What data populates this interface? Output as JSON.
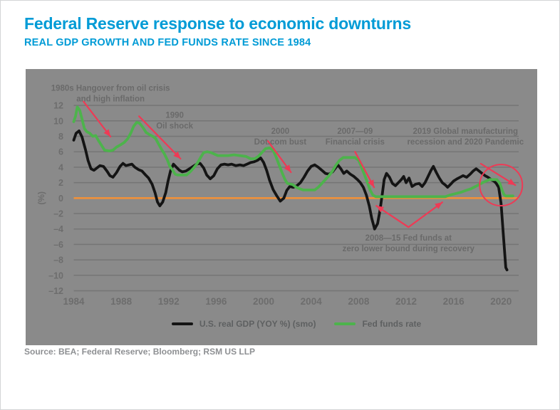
{
  "header": {
    "title": "Federal Reserve response to economic downturns",
    "subtitle": "REAL GDP GROWTH AND FED FUNDS RATE SINCE 1984"
  },
  "colors": {
    "accent_blue": "#009bd6",
    "panel_background": "#8a8a8a",
    "grid": "#757575",
    "zero_line_orange": "#f0913a",
    "gdp_black": "#141414",
    "fed_funds_green": "#4db34c",
    "annotation_red": "#ee3a55",
    "axis_text": "#6d6d6d",
    "annotation_text": "#6a6a6a"
  },
  "chart_data": {
    "type": "line",
    "title": "Federal Reserve response to economic downturns",
    "subtitle": "REAL GDP GROWTH AND FED FUNDS RATE SINCE 1984",
    "grid": true,
    "legend_position": "bottom",
    "x_axis": {
      "ticks": [
        1984,
        1988,
        1992,
        1996,
        2000,
        2004,
        2008,
        2012,
        2016,
        2020
      ],
      "tick_labels": [
        "1984",
        "1988",
        "1992",
        "1996",
        "2000",
        "2004",
        "2008",
        "2012",
        "2016",
        "2020"
      ],
      "range": [
        1984,
        2021.5
      ]
    },
    "y_axis": {
      "label": "(%)",
      "ticks": [
        12,
        10,
        8,
        6,
        4,
        2,
        0,
        -2,
        -4,
        -6,
        -8,
        -10,
        -12
      ],
      "tick_labels": [
        "12",
        "10",
        "8",
        "6",
        "4",
        "2",
        "0",
        "–2",
        "–4",
        "–6",
        "–8",
        "–10",
        "–12"
      ],
      "range": [
        -12,
        12
      ]
    },
    "zero_line_color": "#f0913a",
    "series": [
      {
        "id": "gdp",
        "name": "U.S. real GDP (YOY %) (smo)",
        "color": "#141414",
        "points": [
          [
            1984.0,
            7.5
          ],
          [
            1984.2,
            8.4
          ],
          [
            1984.45,
            8.7
          ],
          [
            1984.7,
            7.9
          ],
          [
            1985.0,
            6.2
          ],
          [
            1985.2,
            4.9
          ],
          [
            1985.45,
            3.8
          ],
          [
            1985.7,
            3.6
          ],
          [
            1985.95,
            3.9
          ],
          [
            1986.2,
            4.2
          ],
          [
            1986.5,
            4.1
          ],
          [
            1986.8,
            3.5
          ],
          [
            1987.05,
            2.9
          ],
          [
            1987.3,
            2.7
          ],
          [
            1987.6,
            3.3
          ],
          [
            1987.9,
            4.1
          ],
          [
            1988.15,
            4.5
          ],
          [
            1988.4,
            4.2
          ],
          [
            1988.65,
            4.3
          ],
          [
            1988.9,
            4.4
          ],
          [
            1989.15,
            4.0
          ],
          [
            1989.45,
            3.7
          ],
          [
            1989.75,
            3.5
          ],
          [
            1990.05,
            3.0
          ],
          [
            1990.3,
            2.6
          ],
          [
            1990.6,
            1.8
          ],
          [
            1990.85,
            0.7
          ],
          [
            1991.05,
            -0.5
          ],
          [
            1991.25,
            -1.0
          ],
          [
            1991.5,
            -0.5
          ],
          [
            1991.75,
            0.7
          ],
          [
            1991.95,
            2.2
          ],
          [
            1992.15,
            3.5
          ],
          [
            1992.4,
            4.4
          ],
          [
            1992.65,
            4.0
          ],
          [
            1992.9,
            3.6
          ],
          [
            1993.15,
            3.4
          ],
          [
            1993.45,
            3.5
          ],
          [
            1993.75,
            3.8
          ],
          [
            1994.05,
            4.1
          ],
          [
            1994.35,
            4.4
          ],
          [
            1994.65,
            4.5
          ],
          [
            1994.95,
            3.9
          ],
          [
            1995.2,
            3.0
          ],
          [
            1995.5,
            2.5
          ],
          [
            1995.8,
            2.9
          ],
          [
            1996.1,
            3.8
          ],
          [
            1996.4,
            4.3
          ],
          [
            1996.7,
            4.4
          ],
          [
            1997.0,
            4.3
          ],
          [
            1997.3,
            4.4
          ],
          [
            1997.65,
            4.2
          ],
          [
            1998.0,
            4.3
          ],
          [
            1998.3,
            4.2
          ],
          [
            1998.6,
            4.4
          ],
          [
            1998.9,
            4.6
          ],
          [
            1999.2,
            4.7
          ],
          [
            1999.5,
            4.9
          ],
          [
            1999.75,
            5.2
          ],
          [
            2000.0,
            4.6
          ],
          [
            2000.25,
            3.6
          ],
          [
            2000.5,
            2.3
          ],
          [
            2000.8,
            1.1
          ],
          [
            2001.1,
            0.3
          ],
          [
            2001.4,
            -0.4
          ],
          [
            2001.7,
            0.0
          ],
          [
            2001.95,
            1.0
          ],
          [
            2002.2,
            1.5
          ],
          [
            2002.5,
            1.4
          ],
          [
            2002.8,
            1.6
          ],
          [
            2003.1,
            2.0
          ],
          [
            2003.4,
            2.7
          ],
          [
            2003.7,
            3.5
          ],
          [
            2004.0,
            4.1
          ],
          [
            2004.3,
            4.3
          ],
          [
            2004.6,
            4.0
          ],
          [
            2004.9,
            3.6
          ],
          [
            2005.2,
            3.2
          ],
          [
            2005.5,
            3.1
          ],
          [
            2005.8,
            3.4
          ],
          [
            2006.05,
            3.9
          ],
          [
            2006.25,
            4.3
          ],
          [
            2006.5,
            3.8
          ],
          [
            2006.75,
            3.2
          ],
          [
            2007.0,
            3.5
          ],
          [
            2007.3,
            3.1
          ],
          [
            2007.6,
            2.8
          ],
          [
            2007.9,
            2.4
          ],
          [
            2008.15,
            2.0
          ],
          [
            2008.4,
            1.4
          ],
          [
            2008.65,
            0.4
          ],
          [
            2008.9,
            -1.0
          ],
          [
            2009.1,
            -2.6
          ],
          [
            2009.35,
            -4.0
          ],
          [
            2009.6,
            -3.3
          ],
          [
            2009.8,
            -1.6
          ],
          [
            2010.0,
            0.6
          ],
          [
            2010.15,
            2.4
          ],
          [
            2010.35,
            3.2
          ],
          [
            2010.6,
            2.7
          ],
          [
            2010.85,
            1.9
          ],
          [
            2011.1,
            1.6
          ],
          [
            2011.35,
            2.0
          ],
          [
            2011.6,
            2.4
          ],
          [
            2011.8,
            2.8
          ],
          [
            2012.0,
            2.0
          ],
          [
            2012.25,
            2.6
          ],
          [
            2012.5,
            1.5
          ],
          [
            2012.8,
            1.8
          ],
          [
            2013.1,
            1.9
          ],
          [
            2013.35,
            1.5
          ],
          [
            2013.6,
            2.0
          ],
          [
            2013.85,
            2.8
          ],
          [
            2014.1,
            3.6
          ],
          [
            2014.3,
            4.1
          ],
          [
            2014.55,
            3.3
          ],
          [
            2014.8,
            2.6
          ],
          [
            2015.05,
            2.0
          ],
          [
            2015.3,
            1.7
          ],
          [
            2015.5,
            1.4
          ],
          [
            2015.75,
            1.8
          ],
          [
            2016.0,
            2.2
          ],
          [
            2016.3,
            2.5
          ],
          [
            2016.55,
            2.7
          ],
          [
            2016.8,
            2.9
          ],
          [
            2017.1,
            2.7
          ],
          [
            2017.4,
            3.1
          ],
          [
            2017.65,
            3.5
          ],
          [
            2017.9,
            3.8
          ],
          [
            2018.15,
            3.5
          ],
          [
            2018.4,
            3.2
          ],
          [
            2018.65,
            2.9
          ],
          [
            2018.9,
            2.7
          ],
          [
            2019.15,
            2.4
          ],
          [
            2019.4,
            2.2
          ],
          [
            2019.6,
            1.9
          ],
          [
            2019.8,
            1.4
          ],
          [
            2020.0,
            -0.7
          ],
          [
            2020.2,
            -4.9
          ],
          [
            2020.4,
            -9.0
          ],
          [
            2020.5,
            -9.3
          ]
        ]
      },
      {
        "id": "fedfunds",
        "name": "Fed funds rate",
        "color": "#4db34c",
        "points": [
          [
            1984.0,
            9.9
          ],
          [
            1984.15,
            10.6
          ],
          [
            1984.3,
            11.8
          ],
          [
            1984.5,
            11.4
          ],
          [
            1984.7,
            10.2
          ],
          [
            1984.9,
            9.0
          ],
          [
            1985.1,
            8.6
          ],
          [
            1985.35,
            8.4
          ],
          [
            1985.6,
            8.0
          ],
          [
            1985.85,
            8.1
          ],
          [
            1986.1,
            7.4
          ],
          [
            1986.35,
            6.8
          ],
          [
            1986.6,
            6.2
          ],
          [
            1987.0,
            6.1
          ],
          [
            1987.3,
            6.2
          ],
          [
            1987.6,
            6.6
          ],
          [
            1987.95,
            6.9
          ],
          [
            1988.25,
            7.2
          ],
          [
            1988.55,
            7.7
          ],
          [
            1988.8,
            8.4
          ],
          [
            1989.05,
            9.3
          ],
          [
            1989.3,
            9.8
          ],
          [
            1989.55,
            9.7
          ],
          [
            1989.85,
            9.1
          ],
          [
            1990.1,
            8.5
          ],
          [
            1990.4,
            8.2
          ],
          [
            1990.65,
            8.0
          ],
          [
            1990.9,
            7.7
          ],
          [
            1991.15,
            7.0
          ],
          [
            1991.4,
            6.3
          ],
          [
            1991.65,
            5.7
          ],
          [
            1991.9,
            4.9
          ],
          [
            1992.1,
            4.1
          ],
          [
            1992.3,
            3.7
          ],
          [
            1992.55,
            3.1
          ],
          [
            1992.75,
            3.0
          ],
          [
            1993.5,
            3.0
          ],
          [
            1993.8,
            3.4
          ],
          [
            1994.1,
            3.9
          ],
          [
            1994.4,
            4.5
          ],
          [
            1994.7,
            5.3
          ],
          [
            1994.95,
            5.9
          ],
          [
            1995.25,
            6.0
          ],
          [
            1995.55,
            5.9
          ],
          [
            1995.85,
            5.7
          ],
          [
            1996.15,
            5.5
          ],
          [
            1997.0,
            5.5
          ],
          [
            1997.5,
            5.6
          ],
          [
            1998.0,
            5.5
          ],
          [
            1998.5,
            5.4
          ],
          [
            1998.9,
            5.1
          ],
          [
            1999.25,
            5.1
          ],
          [
            1999.55,
            5.4
          ],
          [
            1999.85,
            5.9
          ],
          [
            2000.15,
            6.4
          ],
          [
            2000.5,
            6.5
          ],
          [
            2000.8,
            6.2
          ],
          [
            2001.05,
            5.3
          ],
          [
            2001.3,
            4.3
          ],
          [
            2001.55,
            3.3
          ],
          [
            2001.8,
            2.4
          ],
          [
            2002.0,
            1.9
          ],
          [
            2002.45,
            1.75
          ],
          [
            2002.75,
            1.4
          ],
          [
            2003.05,
            1.2
          ],
          [
            2003.35,
            1.05
          ],
          [
            2004.3,
            1.05
          ],
          [
            2004.6,
            1.4
          ],
          [
            2004.9,
            1.9
          ],
          [
            2005.2,
            2.4
          ],
          [
            2005.5,
            2.9
          ],
          [
            2005.8,
            3.5
          ],
          [
            2006.1,
            4.3
          ],
          [
            2006.4,
            4.9
          ],
          [
            2006.7,
            5.25
          ],
          [
            2007.7,
            5.25
          ],
          [
            2008.0,
            4.9
          ],
          [
            2008.2,
            4.2
          ],
          [
            2008.45,
            3.2
          ],
          [
            2008.7,
            2.2
          ],
          [
            2008.95,
            1.1
          ],
          [
            2009.2,
            0.4
          ],
          [
            2009.45,
            0.18
          ],
          [
            2015.3,
            0.18
          ],
          [
            2015.7,
            0.4
          ],
          [
            2016.1,
            0.55
          ],
          [
            2016.6,
            0.75
          ],
          [
            2017.05,
            1.0
          ],
          [
            2017.45,
            1.2
          ],
          [
            2017.85,
            1.5
          ],
          [
            2018.15,
            1.75
          ],
          [
            2018.45,
            2.0
          ],
          [
            2018.75,
            2.2
          ],
          [
            2019.05,
            2.4
          ],
          [
            2019.65,
            2.4
          ],
          [
            2019.9,
            1.9
          ],
          [
            2020.1,
            1.0
          ],
          [
            2020.25,
            0.45
          ],
          [
            2020.4,
            0.28
          ],
          [
            2021.0,
            0.28
          ]
        ]
      }
    ],
    "annotations": {
      "color": "#ee3a55",
      "texts": [
        {
          "lines": [
            "1980s Hangover from oil crisis",
            "and high inflation"
          ],
          "year": 1987.1,
          "value": 13.9
        },
        {
          "lines": [
            "1990",
            "Oil shock"
          ],
          "year": 1992.5,
          "value": 10.4
        },
        {
          "lines": [
            "2000",
            "Dot.com bust"
          ],
          "year": 2001.4,
          "value": 8.3
        },
        {
          "lines": [
            "2007—09",
            "Financial crisis"
          ],
          "year": 2007.7,
          "value": 8.3
        },
        {
          "lines": [
            "2019 Global manufacturing",
            "recession and 2020 Pandemic"
          ],
          "year": 2017.0,
          "value": 8.3
        },
        {
          "lines": [
            "2008—15 Fed funds at",
            "zero lower bound during recovery"
          ],
          "year": 2012.2,
          "value": -5.5
        }
      ],
      "arrows": [
        {
          "points": [
            [
              1984.83,
              12.5
            ],
            [
              1987.1,
              7.95
            ]
          ],
          "heads": "end"
        },
        {
          "points": [
            [
              1989.5,
              10.6
            ],
            [
              1993.0,
              5.1
            ]
          ],
          "heads": "end"
        },
        {
          "points": [
            [
              2000.35,
              7.4
            ],
            [
              2002.3,
              3.35
            ]
          ],
          "heads": "end"
        },
        {
          "points": [
            [
              2007.7,
              6.0
            ],
            [
              2009.3,
              1.4
            ]
          ],
          "heads": "end"
        },
        {
          "points": [
            [
              2009.5,
              -1.0
            ],
            [
              2012.2,
              -3.76
            ],
            [
              2015.05,
              -0.54
            ]
          ],
          "heads": "both"
        },
        {
          "points": [
            [
              2018.3,
              4.45
            ],
            [
              2021.2,
              1.68
            ]
          ],
          "heads": "end"
        }
      ],
      "ellipse": {
        "year": 2020.0,
        "value": 1.68,
        "rx_years": 1.8,
        "ry_units": 2.67
      }
    }
  },
  "legend": {
    "items": [
      {
        "label": "U.S. real GDP (YOY %) (smo)",
        "color": "#141414"
      },
      {
        "label": "Fed funds rate",
        "color": "#4db34c"
      }
    ]
  },
  "source": {
    "text": "Source: BEA; Federal Reserve; Bloomberg; RSM US LLP"
  }
}
